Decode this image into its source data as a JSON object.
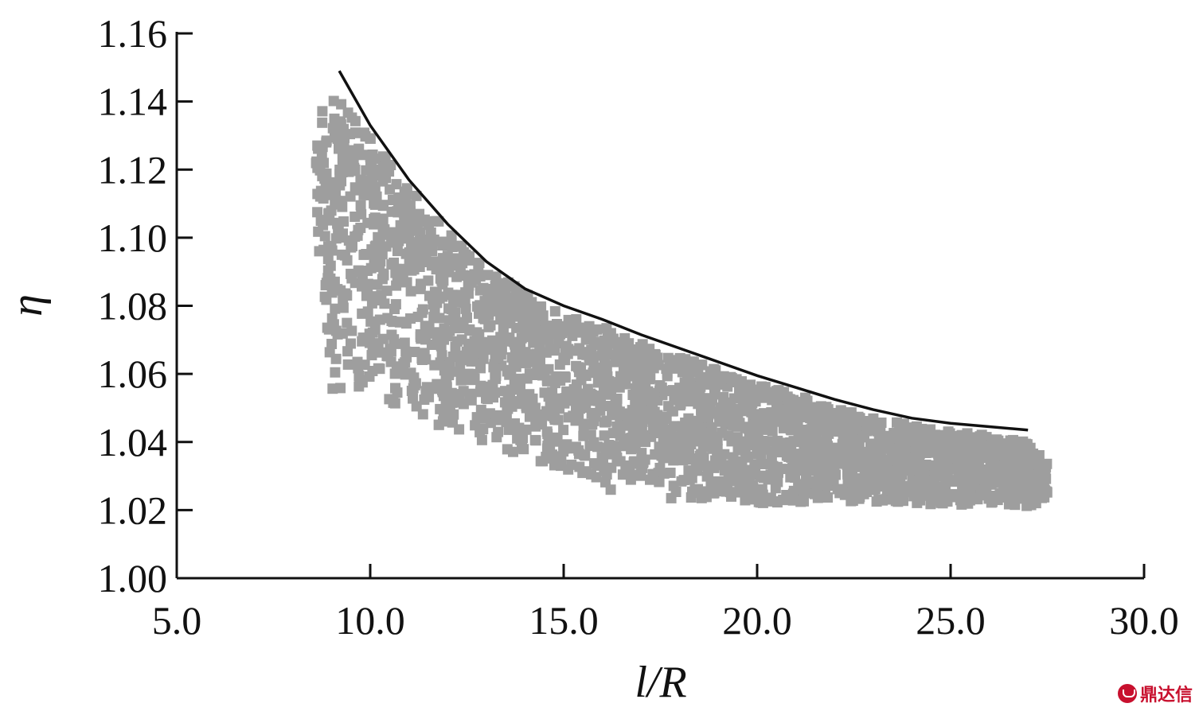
{
  "chart_data": {
    "type": "scatter",
    "title": "",
    "xlabel": "l/R",
    "ylabel": "η",
    "xlim": [
      5.0,
      30.0
    ],
    "ylim": [
      1.0,
      1.16
    ],
    "x_ticks": [
      "5.0",
      "10.0",
      "15.0",
      "20.0",
      "25.0",
      "30.0"
    ],
    "y_ticks": [
      "1.00",
      "1.02",
      "1.04",
      "1.06",
      "1.08",
      "1.10",
      "1.12",
      "1.14",
      "1.16"
    ],
    "grid": false,
    "legend": "none",
    "point_color": "#9e9e9e",
    "line_color": "#111111",
    "series": [
      {
        "type": "line",
        "x": [
          9.2,
          10.0,
          11.0,
          12.0,
          13.0,
          14.0,
          15.0,
          16.0,
          17.0,
          18.0,
          19.0,
          20.0,
          21.0,
          22.0,
          23.0,
          24.0,
          25.0,
          26.0,
          27.0
        ],
        "y": [
          1.149,
          1.133,
          1.117,
          1.104,
          1.093,
          1.085,
          1.08,
          1.076,
          1.0715,
          1.0675,
          1.0635,
          1.0595,
          1.056,
          1.0525,
          1.0495,
          1.047,
          1.0455,
          1.0445,
          1.0435
        ]
      },
      {
        "type": "scatter",
        "x_range": [
          8.6,
          27.5
        ],
        "bands": [
          {
            "x": 8.6,
            "lower": 1.105,
            "upper": 1.138
          },
          {
            "x": 9.0,
            "lower": 1.055,
            "upper": 1.142
          },
          {
            "x": 10.0,
            "lower": 1.056,
            "upper": 1.131
          },
          {
            "x": 11.0,
            "lower": 1.048,
            "upper": 1.115
          },
          {
            "x": 12.0,
            "lower": 1.043,
            "upper": 1.102
          },
          {
            "x": 13.0,
            "lower": 1.04,
            "upper": 1.091
          },
          {
            "x": 14.0,
            "lower": 1.035,
            "upper": 1.084
          },
          {
            "x": 15.0,
            "lower": 1.032,
            "upper": 1.078
          },
          {
            "x": 16.0,
            "lower": 1.025,
            "upper": 1.074
          },
          {
            "x": 17.0,
            "lower": 1.028,
            "upper": 1.069
          },
          {
            "x": 18.0,
            "lower": 1.022,
            "upper": 1.065
          },
          {
            "x": 19.0,
            "lower": 1.024,
            "upper": 1.061
          },
          {
            "x": 20.0,
            "lower": 1.022,
            "upper": 1.057
          },
          {
            "x": 21.0,
            "lower": 1.022,
            "upper": 1.054
          },
          {
            "x": 22.0,
            "lower": 1.023,
            "upper": 1.05
          },
          {
            "x": 23.0,
            "lower": 1.022,
            "upper": 1.047
          },
          {
            "x": 24.0,
            "lower": 1.021,
            "upper": 1.045
          },
          {
            "x": 25.0,
            "lower": 1.021,
            "upper": 1.043
          },
          {
            "x": 26.0,
            "lower": 1.022,
            "upper": 1.042
          },
          {
            "x": 27.0,
            "lower": 1.021,
            "upper": 1.04
          },
          {
            "x": 27.5,
            "lower": 1.023,
            "upper": 1.034
          }
        ]
      }
    ]
  },
  "watermark": {
    "text": "鼎达信",
    "color": "#c8102e"
  }
}
